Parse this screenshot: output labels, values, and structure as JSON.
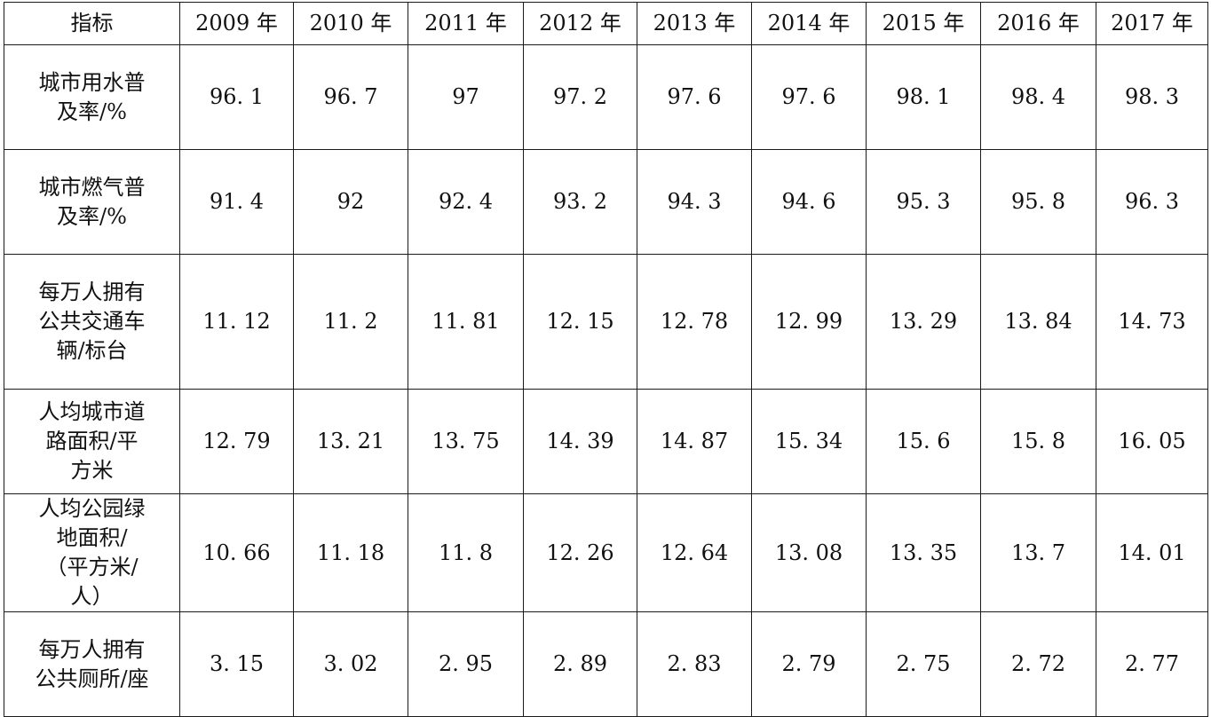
{
  "table": {
    "headers": [
      "指标",
      "2009 年",
      "2010 年",
      "2011 年",
      "2012 年",
      "2013 年",
      "2014 年",
      "2015 年",
      "2016 年",
      "2017 年"
    ],
    "rows": [
      {
        "label": "城市用水普及率/%",
        "values": [
          "96. 1",
          "96. 7",
          "97",
          "97. 2",
          "97. 6",
          "97. 6",
          "98. 1",
          "98. 4",
          "98. 3"
        ]
      },
      {
        "label": "城市燃气普及率/%",
        "values": [
          "91. 4",
          "92",
          "92. 4",
          "93. 2",
          "94. 3",
          "94. 6",
          "95. 3",
          "95. 8",
          "96. 3"
        ]
      },
      {
        "label": "每万人拥有公共交通车辆/标台",
        "values": [
          "11. 12",
          "11. 2",
          "11. 81",
          "12. 15",
          "12. 78",
          "12. 99",
          "13. 29",
          "13. 84",
          "14. 73"
        ]
      },
      {
        "label": "人均城市道路面积/平方米",
        "values": [
          "12. 79",
          "13. 21",
          "13. 75",
          "14. 39",
          "14. 87",
          "15. 34",
          "15. 6",
          "15. 8",
          "16. 05"
        ]
      },
      {
        "label": "人均公园绿地面积/（平方米/人）",
        "values": [
          "10. 66",
          "11. 18",
          "11. 8",
          "12. 26",
          "12. 64",
          "13. 08",
          "13. 35",
          "13. 7",
          "14. 01"
        ]
      },
      {
        "label": "每万人拥有公共厕所/座",
        "values": [
          "3. 15",
          "3. 02",
          "2. 95",
          "2. 89",
          "2. 83",
          "2. 79",
          "2. 75",
          "2. 72",
          "2. 77"
        ]
      }
    ]
  }
}
